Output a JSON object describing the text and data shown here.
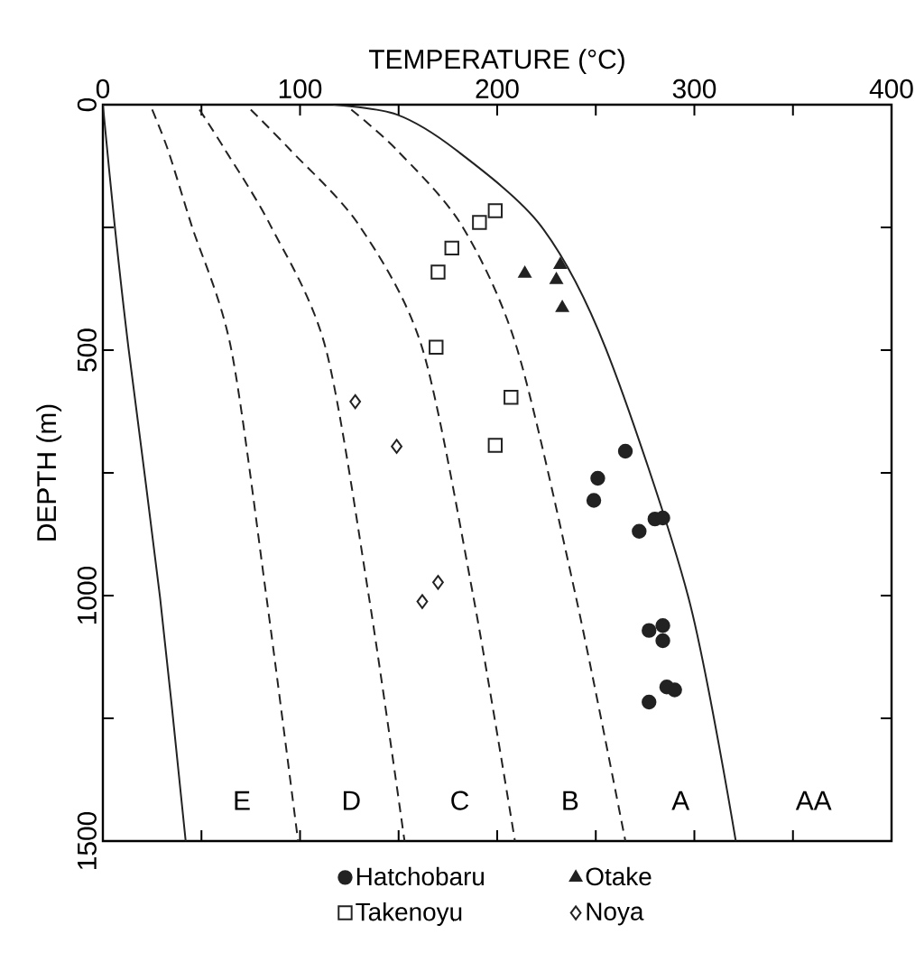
{
  "chart_data": {
    "type": "scatter",
    "xlabel": "TEMPERATURE (°C)",
    "ylabel": "DEPTH (m)",
    "xlim": [
      0,
      400
    ],
    "ylim": [
      1500,
      0
    ],
    "xticks": [
      0,
      {
        "value": 50,
        "label": null
      },
      100,
      {
        "value": 150,
        "label": null
      },
      200,
      {
        "value": 250,
        "label": null
      },
      300,
      {
        "value": 350,
        "label": null
      },
      400
    ],
    "yticks": [
      0,
      {
        "value": 250,
        "label": null
      },
      500,
      {
        "value": 750,
        "label": null
      },
      1000,
      {
        "value": 1250,
        "label": null
      },
      1500
    ],
    "legend": "bottom",
    "series": [
      {
        "type": "line",
        "color": "#222222",
        "line_style": "solid",
        "marker": "none",
        "x": [
          0,
          6,
          13,
          29,
          42
        ],
        "values": [
          0,
          246,
          496,
          1004,
          1500
        ]
      },
      {
        "type": "line",
        "color": "#222222",
        "line_style": "dashed",
        "marker": "none",
        "x": [
          25,
          33,
          45,
          65,
          83,
          99
        ],
        "values": [
          10,
          92,
          246,
          496,
          1004,
          1500
        ]
      },
      {
        "type": "line",
        "color": "#222222",
        "line_style": "dashed",
        "marker": "none",
        "x": [
          49,
          62,
          85,
          113,
          135,
          153
        ],
        "values": [
          10,
          92,
          246,
          496,
          1004,
          1500
        ]
      },
      {
        "type": "line",
        "color": "#222222",
        "line_style": "dashed",
        "marker": "none",
        "x": [
          75,
          95,
          130,
          162,
          188,
          209
        ],
        "values": [
          10,
          92,
          246,
          496,
          1004,
          1500
        ]
      },
      {
        "type": "line",
        "color": "#222222",
        "line_style": "dashed",
        "marker": "none",
        "x": [
          126,
          149,
          182,
          210,
          240,
          265
        ],
        "values": [
          10,
          92,
          246,
          496,
          1004,
          1500
        ]
      },
      {
        "type": "line",
        "color": "#222222",
        "line_style": "solid",
        "marker": "none",
        "x": [
          117,
          149,
          179,
          222,
          255,
          297,
          321
        ],
        "values": [
          0,
          20,
          92,
          246,
          496,
          1004,
          1500
        ]
      },
      {
        "name": "Hatchobaru",
        "color": "#222222",
        "marker": "circle",
        "x": [
          265,
          251,
          249,
          272,
          280,
          284,
          277,
          284,
          284,
          286,
          290,
          277
        ],
        "values": [
          706,
          761,
          806,
          869,
          844,
          842,
          1071,
          1061,
          1092,
          1186,
          1192,
          1217
        ]
      },
      {
        "name": "Otake",
        "color": "#222222",
        "marker": "triangle",
        "x": [
          214,
          232,
          230,
          233
        ],
        "values": [
          344,
          326,
          357,
          414
        ]
      },
      {
        "name": "Takenoyu",
        "color": "#222222",
        "marker": "square",
        "x": [
          199,
          191,
          177,
          170,
          169,
          207,
          199
        ],
        "values": [
          216,
          240,
          292,
          341,
          494,
          596,
          694
        ]
      },
      {
        "name": "Noya",
        "color": "#222222",
        "marker": "diamond",
        "x": [
          128,
          149,
          162,
          170
        ],
        "values": [
          605,
          696,
          1012,
          973
        ]
      }
    ],
    "annotations": [
      "E",
      "D",
      "C",
      "B",
      "A",
      "AA"
    ]
  }
}
